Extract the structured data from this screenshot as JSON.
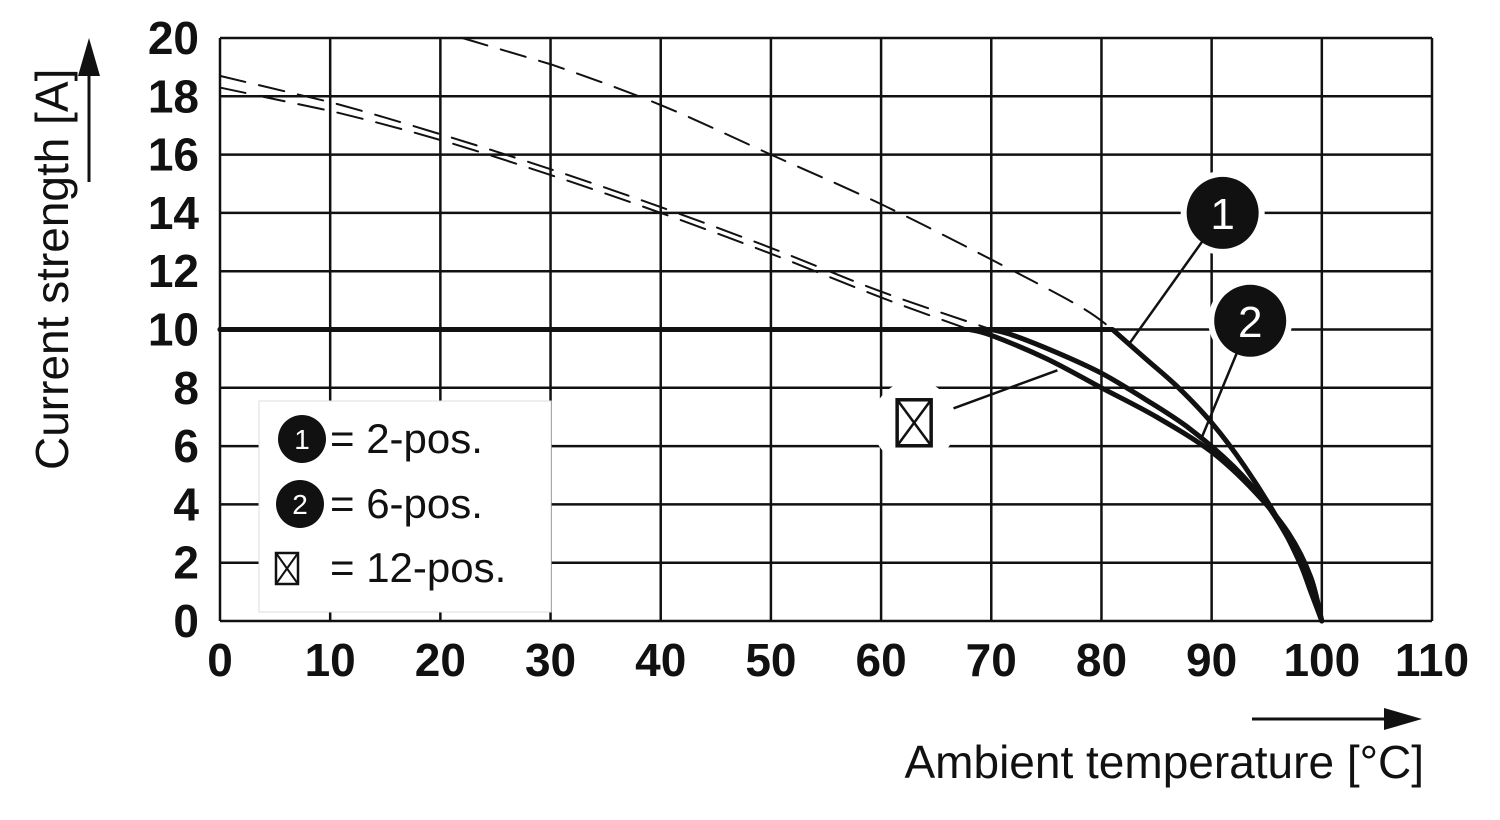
{
  "chart_data": {
    "type": "line",
    "xlabel": "Ambient temperature [°C]",
    "ylabel": "Current strength [A]",
    "xlim": [
      0,
      110
    ],
    "ylim": [
      0,
      20
    ],
    "x_ticks": [
      "0",
      "10",
      "20",
      "30",
      "40",
      "50",
      "60",
      "70",
      "80",
      "90",
      "100",
      "110"
    ],
    "y_ticks": [
      "0",
      "2",
      "4",
      "6",
      "8",
      "10",
      "12",
      "14",
      "16",
      "18",
      "20"
    ],
    "grid": true,
    "legend_position": "bottom-left",
    "legend": [
      {
        "marker": "1",
        "label": "= 2-pos."
      },
      {
        "marker": "2",
        "label": "= 6-pos."
      },
      {
        "marker": "crossed-box-icon",
        "label": "= 12-pos."
      }
    ],
    "series": [
      {
        "marker": "1",
        "style": "solid",
        "x": [
          0,
          81,
          84,
          87,
          90,
          93,
          96,
          98,
          99,
          100
        ],
        "y": [
          10,
          10,
          9.0,
          8.0,
          6.8,
          5.3,
          3.5,
          2.0,
          1.0,
          0
        ]
      },
      {
        "marker": "2",
        "style": "solid",
        "x": [
          0,
          70,
          72,
          76,
          80,
          84,
          88,
          92,
          95,
          97,
          99,
          100
        ],
        "y": [
          10,
          10,
          9.8,
          9.2,
          8.5,
          7.6,
          6.6,
          5.3,
          4.0,
          2.8,
          1.4,
          0
        ]
      },
      {
        "marker": "crossed-box-icon",
        "style": "solid",
        "x": [
          0,
          68,
          70,
          75,
          80,
          85,
          90,
          94,
          97,
          99,
          100
        ],
        "y": [
          10,
          10,
          9.8,
          9.0,
          8.0,
          7.0,
          5.8,
          4.4,
          3.0,
          1.5,
          0
        ]
      },
      {
        "marker": "1",
        "style": "dashed",
        "x": [
          22,
          30,
          40,
          50,
          60,
          70,
          78,
          81
        ],
        "y": [
          20,
          19.1,
          17.7,
          16.0,
          14.3,
          12.4,
          10.8,
          10
        ]
      },
      {
        "marker": "2",
        "style": "dashed",
        "x": [
          0,
          10,
          20,
          30,
          40,
          50,
          60,
          70
        ],
        "y": [
          18.7,
          17.8,
          16.7,
          15.5,
          14.2,
          12.8,
          11.3,
          10
        ]
      },
      {
        "marker": "crossed-box-icon",
        "style": "dashed",
        "x": [
          0,
          10,
          20,
          30,
          40,
          50,
          60,
          68
        ],
        "y": [
          18.3,
          17.5,
          16.5,
          15.3,
          14.0,
          12.6,
          11.1,
          10
        ]
      }
    ],
    "callouts": [
      {
        "marker": "1",
        "at": {
          "x": 91,
          "y": 14
        },
        "points_to": {
          "x": 82.5,
          "y": 9.5
        }
      },
      {
        "marker": "2",
        "at": {
          "x": 93.5,
          "y": 10.3
        },
        "points_to": {
          "x": 89,
          "y": 6.2
        }
      },
      {
        "marker": "crossed-box-icon",
        "at": {
          "x": 63,
          "y": 6.8
        },
        "points_to": {
          "x": 76,
          "y": 8.6
        }
      }
    ]
  }
}
